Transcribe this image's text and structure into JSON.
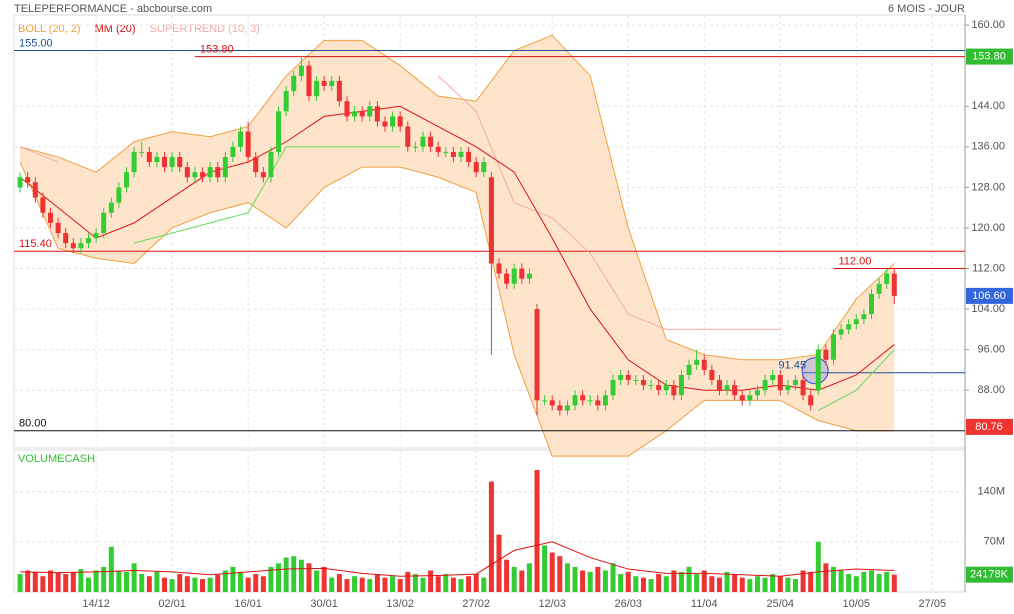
{
  "chart_data": {
    "type": "candlestick",
    "title": "TELEPERFORMANCE - abcbourse.com",
    "period": "6 MOIS - JOUR",
    "xlim": [
      -0.8,
      124.3
    ],
    "xticks": [
      {
        "value": 10,
        "label": "14/12"
      },
      {
        "value": 20,
        "label": "02/01"
      },
      {
        "value": 30,
        "label": "16/01"
      },
      {
        "value": 40,
        "label": "30/01"
      },
      {
        "value": 50,
        "label": "13/02"
      },
      {
        "value": 60,
        "label": "27/02"
      },
      {
        "value": 70,
        "label": "12/03"
      },
      {
        "value": 80,
        "label": "26/03"
      },
      {
        "value": 90,
        "label": "11/04"
      },
      {
        "value": 100,
        "label": "25/04"
      },
      {
        "value": 110,
        "label": "10/05"
      },
      {
        "value": 120,
        "label": "27/05"
      }
    ],
    "ylim": [
      76.6,
      162
    ],
    "yticks": [
      {
        "value": 160,
        "label": "160.00"
      },
      {
        "value": 144,
        "label": "144.00"
      },
      {
        "value": 136,
        "label": "136.00"
      },
      {
        "value": 128,
        "label": "128.00"
      },
      {
        "value": 120,
        "label": "120.00"
      },
      {
        "value": 112,
        "label": "112.00"
      },
      {
        "value": 104,
        "label": "104.00"
      },
      {
        "value": 96,
        "label": "96.00"
      },
      {
        "value": 88,
        "label": "88.00"
      }
    ],
    "grid": true,
    "colors": {
      "up": "#33cc33",
      "down": "#ee3333"
    },
    "ohlc": {
      "open": [
        128,
        130,
        129,
        126,
        123,
        121,
        119,
        117,
        116,
        117,
        118,
        119,
        123,
        125,
        128,
        131,
        135,
        135,
        133,
        134,
        132,
        134,
        132,
        130,
        131,
        130,
        132,
        130,
        134,
        136,
        139,
        134,
        131,
        130,
        135,
        143,
        147,
        150,
        152,
        146,
        149,
        148,
        149,
        145,
        142,
        143,
        142,
        144,
        141,
        140,
        142,
        140,
        136,
        136,
        138,
        136,
        135,
        135,
        134,
        135,
        133,
        131,
        130,
        113,
        111,
        109,
        112,
        110,
        104,
        86,
        86,
        85,
        84,
        85,
        87,
        86,
        86,
        85,
        87,
        90,
        91,
        90,
        90,
        89,
        89,
        88,
        89,
        87,
        91,
        93,
        94,
        92,
        90,
        88,
        89,
        87,
        86,
        87,
        88,
        90,
        91,
        88,
        89,
        90,
        87,
        88,
        96,
        94,
        99,
        100,
        101,
        102,
        103,
        107,
        109,
        111
      ],
      "high": [
        131,
        131,
        130,
        127,
        124,
        122,
        120,
        118,
        118,
        119,
        120,
        124,
        126,
        129,
        132,
        136,
        137,
        136,
        135,
        135,
        135,
        135,
        133,
        132,
        132,
        133,
        133,
        135,
        137,
        140,
        141,
        135,
        132,
        136,
        144,
        148,
        151,
        154,
        153,
        150,
        150,
        150,
        150,
        146,
        144,
        144,
        145,
        145,
        142,
        143,
        143,
        141,
        137,
        139,
        139,
        137,
        136,
        136,
        136,
        136,
        134,
        134,
        131,
        114,
        112,
        113,
        113,
        112,
        105,
        87,
        87,
        86,
        86,
        88,
        88,
        87,
        87,
        88,
        91,
        92,
        92,
        91,
        91,
        90,
        90,
        90,
        90,
        92,
        94,
        96,
        95,
        93,
        91,
        90,
        90,
        88,
        88,
        89,
        91,
        92,
        92,
        90,
        91,
        91,
        88,
        97,
        97,
        100,
        101,
        102,
        103,
        104,
        108,
        110,
        112,
        112
      ],
      "low": [
        127,
        128,
        125,
        122,
        120,
        118,
        116,
        115,
        115,
        116,
        117,
        118,
        122,
        124,
        127,
        130,
        134,
        132,
        132,
        131,
        131,
        131,
        129,
        129,
        129,
        129,
        129,
        129,
        133,
        135,
        133,
        130,
        129,
        129,
        134,
        142,
        146,
        149,
        145,
        145,
        147,
        147,
        144,
        141,
        141,
        141,
        141,
        140,
        139,
        139,
        139,
        135,
        135,
        135,
        135,
        134,
        134,
        133,
        133,
        132,
        130,
        130,
        95,
        110,
        108,
        108,
        109,
        109,
        83,
        85,
        84,
        83,
        83,
        84,
        85,
        85,
        84,
        84,
        86,
        89,
        89,
        89,
        88,
        88,
        87,
        87,
        86,
        86,
        90,
        92,
        91,
        89,
        87,
        87,
        86,
        85,
        85,
        86,
        87,
        89,
        87,
        87,
        88,
        86,
        84,
        87,
        93,
        93,
        98,
        99,
        100,
        101,
        102,
        106,
        108,
        105
      ],
      "close": [
        130,
        129,
        126,
        123,
        121,
        119,
        117,
        116,
        117,
        118,
        119,
        123,
        125,
        128,
        131,
        135,
        135,
        133,
        134,
        132,
        134,
        132,
        130,
        131,
        130,
        132,
        130,
        134,
        136,
        139,
        134,
        131,
        130,
        135,
        143,
        147,
        150,
        152,
        146,
        149,
        148,
        149,
        145,
        142,
        143,
        142,
        144,
        141,
        140,
        142,
        140,
        136,
        136,
        138,
        136,
        135,
        135,
        134,
        135,
        133,
        131,
        133,
        113,
        111,
        109,
        112,
        110,
        111,
        86,
        86,
        85,
        84,
        85,
        87,
        86,
        86,
        85,
        87,
        90,
        91,
        90,
        90,
        89,
        89,
        88,
        89,
        87,
        91,
        93,
        94,
        92,
        90,
        88,
        89,
        87,
        86,
        87,
        88,
        90,
        91,
        88,
        89,
        90,
        87,
        85,
        96,
        94,
        99,
        100,
        101,
        102,
        103,
        107,
        109,
        111,
        106.6
      ]
    },
    "bollinger": {
      "name": "BOLL (20, 2)",
      "color": "#f0a040",
      "fill": "#fde4cb",
      "x": [
        0,
        5,
        10,
        15,
        20,
        25,
        30,
        35,
        40,
        45,
        50,
        55,
        60,
        65,
        70,
        75,
        80,
        85,
        90,
        95,
        100,
        105,
        110,
        115
      ],
      "upper": [
        136,
        134,
        131,
        137,
        139,
        138,
        140,
        150,
        157,
        157,
        152,
        146,
        145,
        155,
        158,
        150,
        120,
        98,
        95,
        94,
        94,
        95,
        106,
        113
      ],
      "lower": [
        133,
        116,
        114,
        113,
        120,
        123,
        125,
        120,
        128,
        132,
        132,
        130,
        127,
        95,
        75,
        75,
        75,
        80,
        86,
        86,
        86,
        82,
        80,
        80
      ]
    },
    "ma": {
      "name": "MM (20)",
      "color": "#dd1111",
      "x": [
        0,
        5,
        10,
        15,
        20,
        25,
        30,
        35,
        40,
        45,
        50,
        55,
        60,
        65,
        70,
        75,
        80,
        85,
        90,
        95,
        100,
        105,
        110,
        115
      ],
      "values": [
        130,
        124,
        118,
        121,
        126,
        131,
        133,
        137,
        142,
        143,
        144,
        140,
        136,
        131,
        118,
        104,
        94,
        89,
        88,
        88,
        89,
        88,
        91,
        97
      ]
    },
    "supertrend": {
      "name": "SUPERTREND (10, 3)",
      "color": "#f4a8a8",
      "up_color": "#5fdc5f",
      "x": [
        0,
        5,
        10,
        15,
        20,
        25,
        30,
        35,
        40,
        45,
        50,
        55,
        60,
        65,
        70,
        75,
        80,
        85,
        90,
        95,
        100,
        105,
        110,
        115
      ],
      "down": [
        136,
        133,
        null,
        null,
        null,
        null,
        null,
        null,
        null,
        null,
        null,
        150,
        143,
        125,
        122,
        115,
        103,
        100,
        100,
        100,
        100,
        null,
        null,
        null
      ],
      "up": [
        null,
        null,
        null,
        117,
        119,
        121,
        123,
        136,
        136,
        136,
        136,
        null,
        null,
        null,
        null,
        null,
        null,
        null,
        null,
        null,
        null,
        84,
        88,
        96
      ]
    },
    "levels": [
      {
        "value": 155,
        "label": "155.00",
        "color": "#1f4e99",
        "start": 0
      },
      {
        "value": 153.8,
        "label": "153.80",
        "color": "#dd1111",
        "start": 23
      },
      {
        "value": 115.4,
        "label": "115.40",
        "color": "#dd1111",
        "start": 0
      },
      {
        "value": 112,
        "label": "112.00",
        "color": "#dd1111",
        "start": 107
      },
      {
        "value": 80,
        "label": "80.00",
        "color": "#111111",
        "start": 0
      },
      {
        "value": 91.45,
        "label": "91.45",
        "color": "#1f4e99",
        "start": 103,
        "circle": true
      }
    ],
    "price_tags": [
      {
        "value": 153.8,
        "label": "153.80",
        "color": "#33bb33"
      },
      {
        "value": 106.6,
        "label": "106.60",
        "color": "#3366dd"
      },
      {
        "value": 80.76,
        "label": "80.76",
        "color": "#ee3333"
      }
    ],
    "volume": {
      "name": "VOLUMECASH",
      "color": "#33bb33",
      "ylim": [
        0,
        198
      ],
      "yticks": [
        {
          "value": 140,
          "label": "140M"
        },
        {
          "value": 70,
          "label": "70M"
        }
      ],
      "values": [
        25,
        30,
        28,
        22,
        30,
        27,
        25,
        28,
        32,
        20,
        30,
        35,
        63,
        30,
        28,
        40,
        25,
        22,
        28,
        20,
        18,
        25,
        22,
        20,
        18,
        20,
        24,
        30,
        35,
        28,
        20,
        25,
        22,
        35,
        40,
        48,
        50,
        45,
        40,
        30,
        35,
        20,
        25,
        18,
        22,
        20,
        18,
        25,
        20,
        22,
        18,
        28,
        25,
        20,
        30,
        22,
        25,
        20,
        18,
        22,
        25,
        20,
        154,
        80,
        45,
        35,
        30,
        40,
        170,
        65,
        55,
        50,
        40,
        35,
        30,
        28,
        35,
        30,
        40,
        25,
        28,
        22,
        20,
        18,
        25,
        22,
        30,
        28,
        35,
        25,
        30,
        22,
        20,
        28,
        25,
        20,
        18,
        22,
        20,
        25,
        22,
        20,
        18,
        30,
        28,
        70,
        40,
        35,
        30,
        25,
        22,
        28,
        30,
        25,
        28,
        24.178
      ],
      "ma": {
        "color": "#dd1111",
        "x": [
          0,
          5,
          10,
          15,
          20,
          25,
          30,
          35,
          40,
          45,
          50,
          55,
          60,
          65,
          70,
          75,
          80,
          85,
          90,
          95,
          100,
          105,
          110,
          115
        ],
        "values": [
          28,
          27,
          28,
          30,
          28,
          24,
          28,
          32,
          33,
          26,
          22,
          23,
          25,
          58,
          70,
          48,
          32,
          26,
          26,
          24,
          22,
          28,
          32,
          30
        ]
      },
      "tag": {
        "value": 24.178,
        "label": "24178K",
        "color": "#33bb33"
      }
    }
  }
}
